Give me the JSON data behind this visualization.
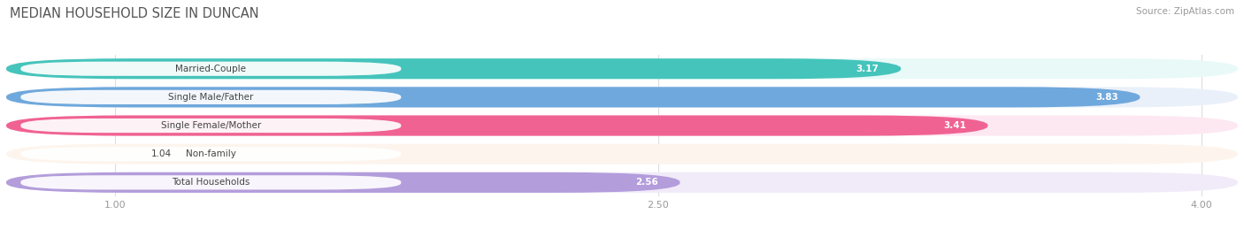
{
  "title": "MEDIAN HOUSEHOLD SIZE IN DUNCAN",
  "source": "Source: ZipAtlas.com",
  "categories": [
    "Married-Couple",
    "Single Male/Father",
    "Single Female/Mother",
    "Non-family",
    "Total Households"
  ],
  "values": [
    3.17,
    3.83,
    3.41,
    1.04,
    2.56
  ],
  "bar_colors": [
    "#45C4BB",
    "#6FA8DC",
    "#F06292",
    "#F5C396",
    "#B39DDB"
  ],
  "bar_bg_colors": [
    "#E8F9F8",
    "#EAF0FA",
    "#FDE8F2",
    "#FDF5ED",
    "#F1EBF9"
  ],
  "xlim_min": 0.7,
  "xlim_max": 4.1,
  "xticks": [
    1.0,
    2.5,
    4.0
  ],
  "xtick_labels": [
    "1.00",
    "2.50",
    "4.00"
  ],
  "value_color": "white",
  "label_color": "#444444",
  "title_color": "#555555",
  "background_color": "#ffffff",
  "bar_height": 0.72,
  "bar_gap": 0.28
}
